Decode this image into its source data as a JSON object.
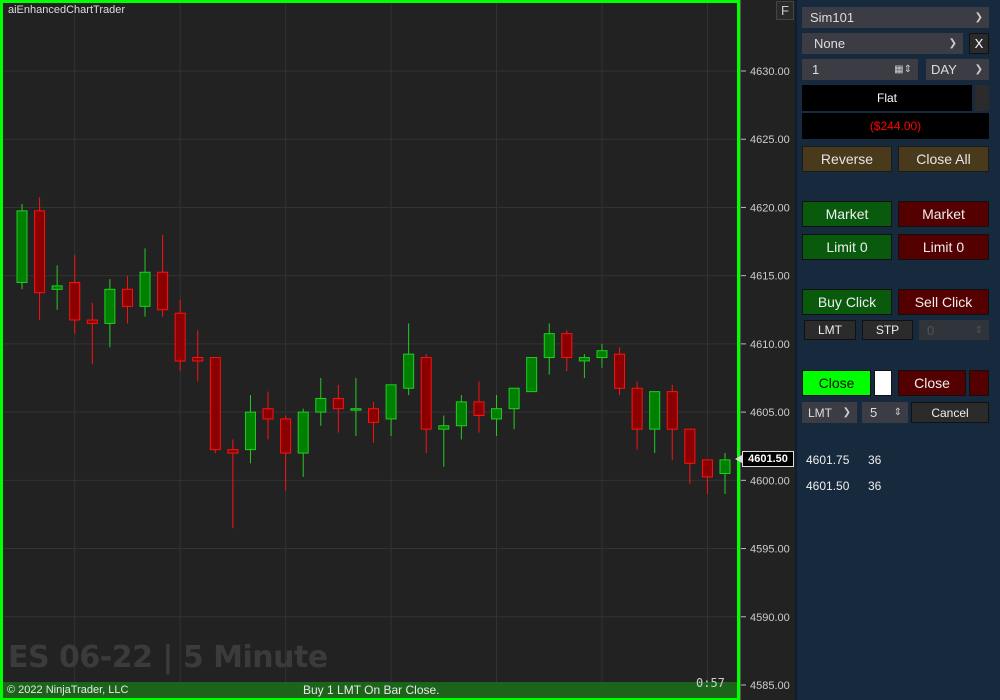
{
  "chart": {
    "title": "aiEnhancedChartTrader",
    "f_button": "F",
    "watermark": "ES 06-22 | 5 Minute",
    "copyright": "© 2022 NinjaTrader, LLC",
    "status_message": "Buy 1 LMT On Bar Close.",
    "bar_timer": "0:57",
    "current_price": "4601.50",
    "colors": {
      "up": "#008000",
      "up_border": "#22cc22",
      "down": "#8b0000",
      "down_border": "#ff1010",
      "border": "#00ff00",
      "grid": "#333333"
    }
  },
  "chart_data": {
    "type": "candlestick",
    "ylim": [
      4585,
      4630
    ],
    "y_ticks": [
      "4630.00",
      "4625.00",
      "4620.00",
      "4615.00",
      "4610.00",
      "4605.00",
      "4600.00",
      "4595.00",
      "4590.00",
      "4585.00"
    ],
    "ohlc": [
      [
        4614.5,
        4620.25,
        4614.0,
        4619.75
      ],
      [
        4619.75,
        4620.75,
        4611.75,
        4613.75
      ],
      [
        4614.0,
        4615.75,
        4612.5,
        4614.25
      ],
      [
        4614.5,
        4616.5,
        4610.75,
        4611.75
      ],
      [
        4611.75,
        4613.0,
        4608.5,
        4611.5
      ],
      [
        4611.5,
        4614.75,
        4609.75,
        4614.0
      ],
      [
        4614.0,
        4615.0,
        4611.5,
        4612.75
      ],
      [
        4612.75,
        4617.0,
        4612.0,
        4615.25
      ],
      [
        4615.25,
        4618.0,
        4612.0,
        4612.5
      ],
      [
        4612.25,
        4613.25,
        4608.0,
        4608.75
      ],
      [
        4609.0,
        4611.0,
        4607.25,
        4608.75
      ],
      [
        4609.0,
        4609.0,
        4602.0,
        4602.25
      ],
      [
        4602.25,
        4603.0,
        4596.5,
        4602.0
      ],
      [
        4602.25,
        4606.25,
        4601.25,
        4605.0
      ],
      [
        4605.25,
        4606.5,
        4603.0,
        4604.5
      ],
      [
        4604.5,
        4604.75,
        4599.25,
        4602.0
      ],
      [
        4602.0,
        4605.25,
        4600.25,
        4605.0
      ],
      [
        4605.0,
        4607.5,
        4604.0,
        4606.0
      ],
      [
        4606.0,
        4607.0,
        4603.5,
        4605.25
      ],
      [
        4605.25,
        4607.5,
        4603.25,
        4605.25
      ],
      [
        4605.25,
        4605.75,
        4602.75,
        4604.25
      ],
      [
        4604.5,
        4607.0,
        4603.25,
        4607.0
      ],
      [
        4606.75,
        4611.5,
        4606.25,
        4609.25
      ],
      [
        4609.0,
        4609.25,
        4602.0,
        4603.75
      ],
      [
        4603.75,
        4604.75,
        4601.0,
        4604.0
      ],
      [
        4604.0,
        4606.25,
        4603.0,
        4605.75
      ],
      [
        4605.75,
        4607.25,
        4603.5,
        4604.75
      ],
      [
        4604.5,
        4606.25,
        4603.25,
        4605.25
      ],
      [
        4605.25,
        4606.75,
        4603.75,
        4606.75
      ],
      [
        4606.5,
        4609.0,
        4606.5,
        4609.0
      ],
      [
        4609.0,
        4611.5,
        4607.75,
        4610.75
      ],
      [
        4610.75,
        4611.0,
        4608.0,
        4609.0
      ],
      [
        4608.75,
        4609.25,
        4607.5,
        4609.0
      ],
      [
        4609.0,
        4610.0,
        4608.25,
        4609.5
      ],
      [
        4609.25,
        4609.75,
        4606.25,
        4606.75
      ],
      [
        4606.75,
        4607.25,
        4602.25,
        4603.75
      ],
      [
        4603.75,
        4606.5,
        4602.0,
        4606.5
      ],
      [
        4606.5,
        4607.0,
        4601.5,
        4603.75
      ],
      [
        4603.75,
        4603.75,
        4599.75,
        4601.25
      ],
      [
        4601.5,
        4601.5,
        4599.0,
        4600.25
      ],
      [
        4600.5,
        4602.0,
        4599.0,
        4601.5
      ]
    ],
    "grid": true
  },
  "panel": {
    "account": "Sim101",
    "atm": "None",
    "atm_clear": "X",
    "quantity": "1",
    "tif": "DAY",
    "position": "Flat",
    "pnl": "($244.00)",
    "pnl_color": "#ff0000",
    "reverse": "Reverse",
    "close_all": "Close All",
    "buy_market": "Market",
    "sell_market": "Market",
    "buy_limit": "Limit 0",
    "sell_limit": "Limit 0",
    "buy_click": "Buy Click",
    "sell_click": "Sell Click",
    "lmt": "LMT",
    "stp": "STP",
    "offset": "0",
    "close_buy": "Close",
    "close_sell": "Close",
    "order_type": "LMT",
    "ticks": "5",
    "cancel": "Cancel",
    "levels": [
      {
        "price": "4601.75",
        "qty": "36"
      },
      {
        "price": "4601.50",
        "qty": "36"
      }
    ]
  }
}
